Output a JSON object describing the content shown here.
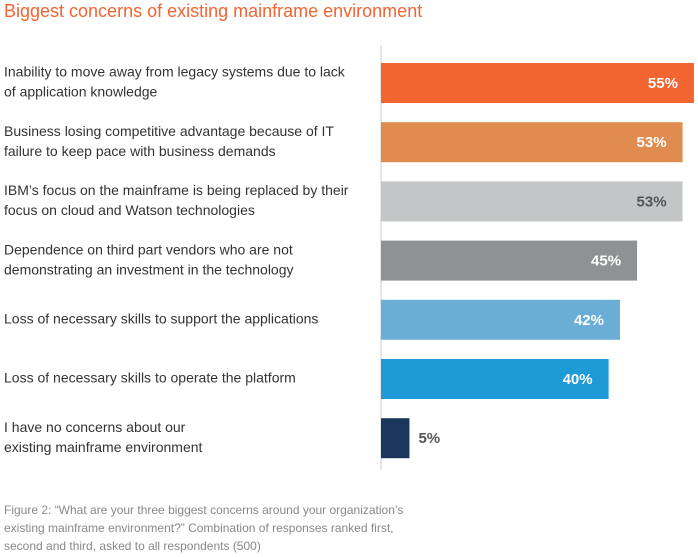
{
  "chart_data": {
    "type": "bar",
    "title": "Biggest concerns of existing mainframe environment",
    "categories": [
      [
        "Inability to move away from legacy systems due to lack",
        "of application knowledge"
      ],
      [
        "Business losing competitive advantage because of IT",
        "failure to keep pace with business demands"
      ],
      [
        "IBM’s focus on the mainframe is being replaced by their",
        "focus on cloud and Watson technologies"
      ],
      [
        "Dependence on third part vendors who are not",
        "demonstrating an investment in the technology"
      ],
      [
        "Loss of necessary skills to support the applications"
      ],
      [
        "Loss of necessary skills to operate the platform"
      ],
      [
        "I have no concerns about our",
        "existing mainframe environment"
      ]
    ],
    "values": [
      55,
      53,
      53,
      45,
      42,
      40,
      5
    ],
    "value_labels": [
      "55%",
      "53%",
      "53%",
      "45%",
      "42%",
      "40%",
      "5%"
    ],
    "colors": [
      "#f26430",
      "#e08b4f",
      "#c3c5c7",
      "#8f9293",
      "#6aaed6",
      "#1e9ad6",
      "#1b365d"
    ],
    "note": [
      "Figure 2: “What are your three biggest concerns around your organization’s",
      "existing mainframe environment?” Combination of responses ranked first,",
      "second and third, asked to all respondents (500)"
    ]
  }
}
